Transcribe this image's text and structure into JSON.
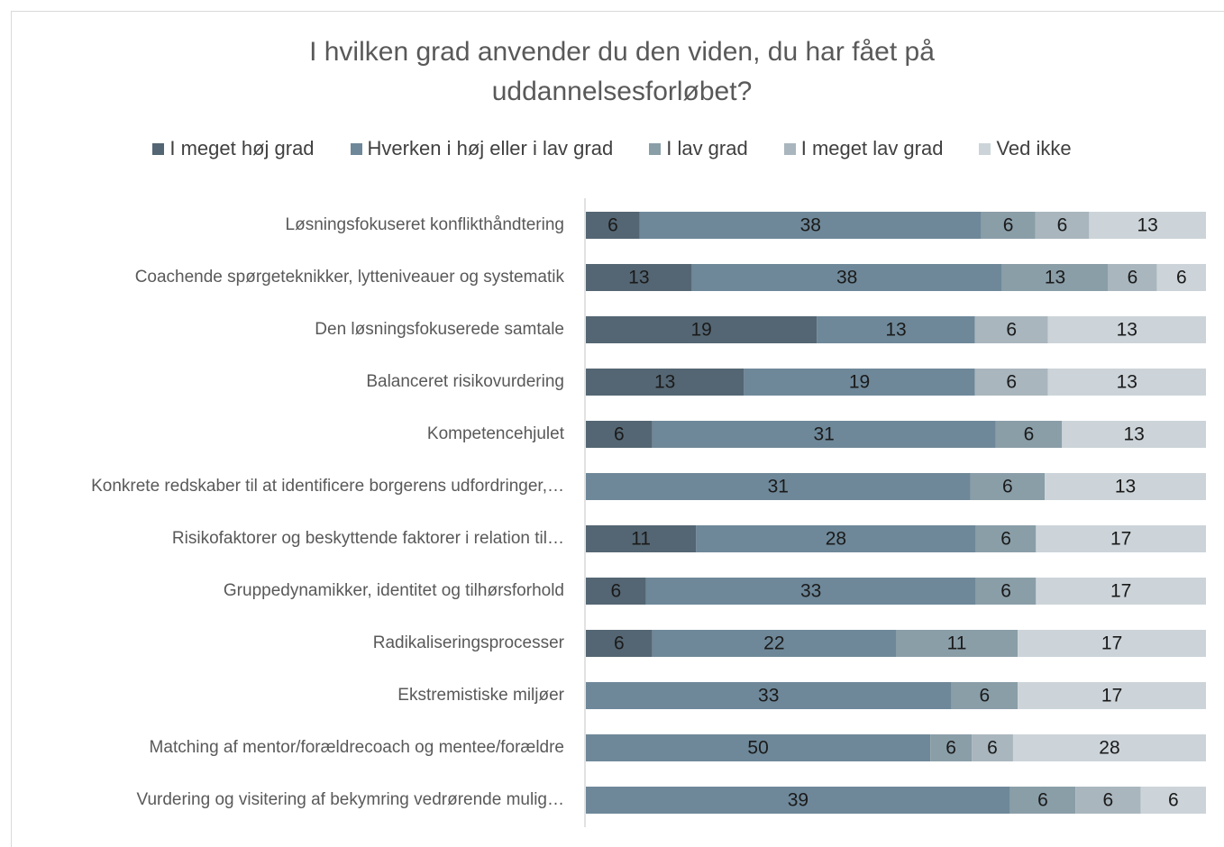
{
  "chart_data": {
    "type": "stacked-bar-100",
    "title": "I hvilken grad anvender du den viden, du har fået på uddannelsesforløbet?",
    "categories": [
      "Løsningsfokuseret konflikthåndtering",
      "Coachende spørgeteknikker, lytteniveauer og systematik",
      "Den løsningsfokuserede samtale",
      "Balanceret risikovurdering",
      "Kompetencehjulet",
      "Konkrete redskaber til at identificere borgerens udfordringer,…",
      "Risikofaktorer og beskyttende faktorer i relation til…",
      "Gruppedynamikker, identitet og tilhørsforhold",
      "Radikaliseringsprocesser",
      "Ekstremistiske miljøer",
      "Matching af mentor/forældrecoach og mentee/forældre",
      "Vurdering og visitering af bekymring vedrørende mulig…"
    ],
    "series": [
      {
        "name": "I meget høj grad",
        "color": "#546673",
        "values": [
          6,
          13,
          19,
          13,
          6,
          null,
          11,
          6,
          6,
          null,
          null,
          null
        ]
      },
      {
        "name": "Hverken i høj eller i lav grad",
        "color": "#6e8899",
        "values": [
          38,
          38,
          13,
          19,
          31,
          31,
          28,
          33,
          22,
          33,
          50,
          39
        ]
      },
      {
        "name": "I lav grad",
        "color": "#8a9ea8",
        "values": [
          6,
          13,
          null,
          null,
          6,
          6,
          6,
          6,
          11,
          6,
          6,
          6
        ]
      },
      {
        "name": "I meget lav grad",
        "color": "#a9b6be",
        "values": [
          6,
          6,
          6,
          6,
          null,
          null,
          null,
          null,
          null,
          null,
          6,
          6
        ]
      },
      {
        "name": "Ved ikke",
        "color": "#ccd4d9",
        "values": [
          13,
          6,
          13,
          13,
          13,
          13,
          17,
          17,
          17,
          17,
          28,
          6
        ]
      }
    ]
  }
}
